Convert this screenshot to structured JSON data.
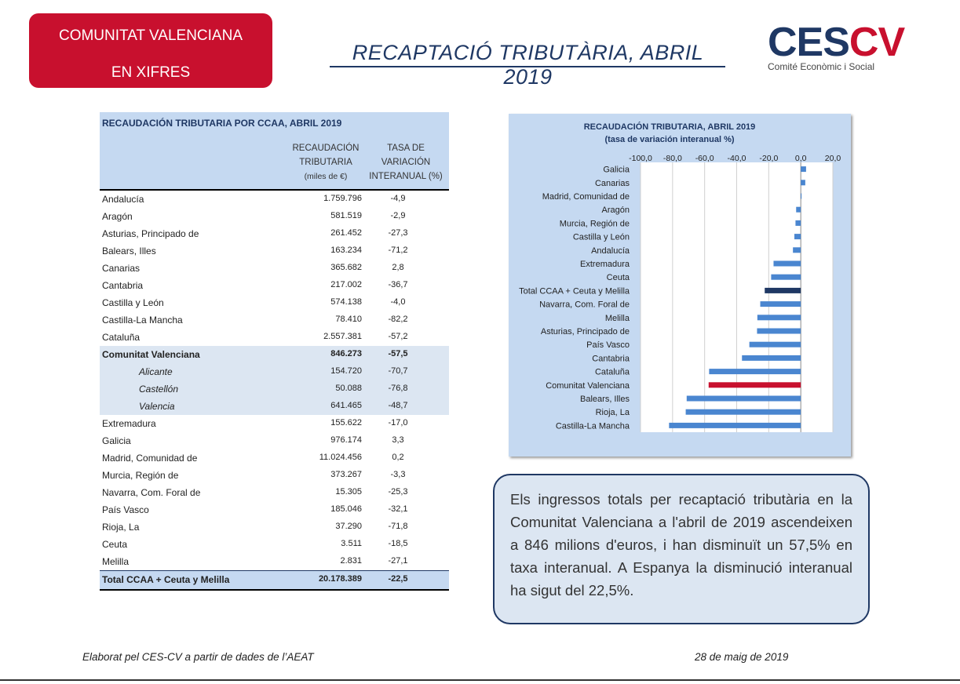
{
  "header": {
    "badge_line1": "COMUNITAT VALENCIANA",
    "badge_line2": "EN XIFRES",
    "title": "RECAPTACIÓ TRIBUTÀRIA, ABRIL 2019",
    "logo_ces": "CES",
    "logo_cv": "CV",
    "logo_sub": "Comité Econòmic i Social"
  },
  "table": {
    "title": "RECAUDACIÓN TRIBUTARIA POR CCAA, ABRIL 2019",
    "col1_l1": "RECAUDACIÓN",
    "col1_l2": "TRIBUTARIA",
    "col1_l3": "(miles de €)",
    "col2_l1": "TASA DE",
    "col2_l2": "VARIACIÓN",
    "col2_l3": "INTERANUAL (%)",
    "rows": [
      {
        "name": "Andalucía",
        "amount": "1.759.796",
        "rate": "-4,9"
      },
      {
        "name": "Aragón",
        "amount": "581.519",
        "rate": "-2,9"
      },
      {
        "name": "Asturias, Principado de",
        "amount": "261.452",
        "rate": "-27,3"
      },
      {
        "name": "Balears, Illes",
        "amount": "163.234",
        "rate": "-71,2"
      },
      {
        "name": "Canarias",
        "amount": "365.682",
        "rate": "2,8"
      },
      {
        "name": "Cantabria",
        "amount": "217.002",
        "rate": "-36,7"
      },
      {
        "name": "Castilla y León",
        "amount": "574.138",
        "rate": "-4,0"
      },
      {
        "name": "Castilla-La Mancha",
        "amount": "78.410",
        "rate": "-82,2"
      },
      {
        "name": "Cataluña",
        "amount": "2.557.381",
        "rate": "-57,2"
      },
      {
        "name": "Comunitat Valenciana",
        "amount": "846.273",
        "rate": "-57,5"
      },
      {
        "name": "Alicante",
        "amount": "154.720",
        "rate": "-70,7"
      },
      {
        "name": "Castellón",
        "amount": "50.088",
        "rate": "-76,8"
      },
      {
        "name": "Valencia",
        "amount": "641.465",
        "rate": "-48,7"
      },
      {
        "name": "Extremadura",
        "amount": "155.622",
        "rate": "-17,0"
      },
      {
        "name": "Galicia",
        "amount": "976.174",
        "rate": "3,3"
      },
      {
        "name": "Madrid, Comunidad de",
        "amount": "11.024.456",
        "rate": "0,2"
      },
      {
        "name": "Murcia, Región de",
        "amount": "373.267",
        "rate": "-3,3"
      },
      {
        "name": "Navarra, Com. Foral de",
        "amount": "15.305",
        "rate": "-25,3"
      },
      {
        "name": "País Vasco",
        "amount": "185.046",
        "rate": "-32,1"
      },
      {
        "name": "Rioja, La",
        "amount": "37.290",
        "rate": "-71,8"
      },
      {
        "name": "Ceuta",
        "amount": "3.511",
        "rate": "-18,5"
      },
      {
        "name": "Melilla",
        "amount": "2.831",
        "rate": "-27,1"
      }
    ],
    "total": {
      "name": "Total CCAA + Ceuta y Melilla",
      "amount": "20.178.389",
      "rate": "-22,5"
    }
  },
  "chart_data": {
    "type": "bar",
    "orientation": "horizontal",
    "title": "RECAUDACIÓN TRIBUTARIA, ABRIL 2019",
    "subtitle": "(tasa de variación interanual %)",
    "xlim": [
      -100,
      20
    ],
    "xticks": [
      "-100,0",
      "-80,0",
      "-60,0",
      "-40,0",
      "-20,0",
      "0,0",
      "20,0"
    ],
    "xtick_values": [
      -100,
      -80,
      -60,
      -40,
      -20,
      0,
      20
    ],
    "categories": [
      "Galicia",
      "Canarias",
      "Madrid, Comunidad de",
      "Aragón",
      "Murcia, Región de",
      "Castilla y León",
      "Andalucía",
      "Extremadura",
      "Ceuta",
      "Total CCAA + Ceuta y Melilla",
      "Navarra, Com. Foral de",
      "Melilla",
      "Asturias, Principado de",
      "País Vasco",
      "Cantabria",
      "Cataluña",
      "Comunitat Valenciana",
      "Balears, Illes",
      "Rioja, La",
      "Castilla-La Mancha"
    ],
    "values": [
      3.3,
      2.8,
      0.2,
      -2.9,
      -3.3,
      -4.0,
      -4.9,
      -17.0,
      -18.5,
      -22.5,
      -25.3,
      -27.1,
      -27.3,
      -32.1,
      -36.7,
      -57.2,
      -57.5,
      -71.2,
      -71.8,
      -82.2
    ],
    "colors": {
      "default": "#4a86d0",
      "total": "#1f3864",
      "highlight": "#c8102e"
    },
    "grid": true,
    "axis_position": "top"
  },
  "note": "Els ingressos totals per recaptació tributària en la Comunitat Valenciana a l'abril de 2019 ascendeixen a 846 milions d'euros, i han disminuït un 57,5% en taxa interanual. A Espanya la disminució interanual ha sigut del 22,5%.",
  "footer": {
    "source": "Elaborat pel CES-CV a partir de dades de l’AEAT",
    "date": "28 de maig de 2019"
  }
}
